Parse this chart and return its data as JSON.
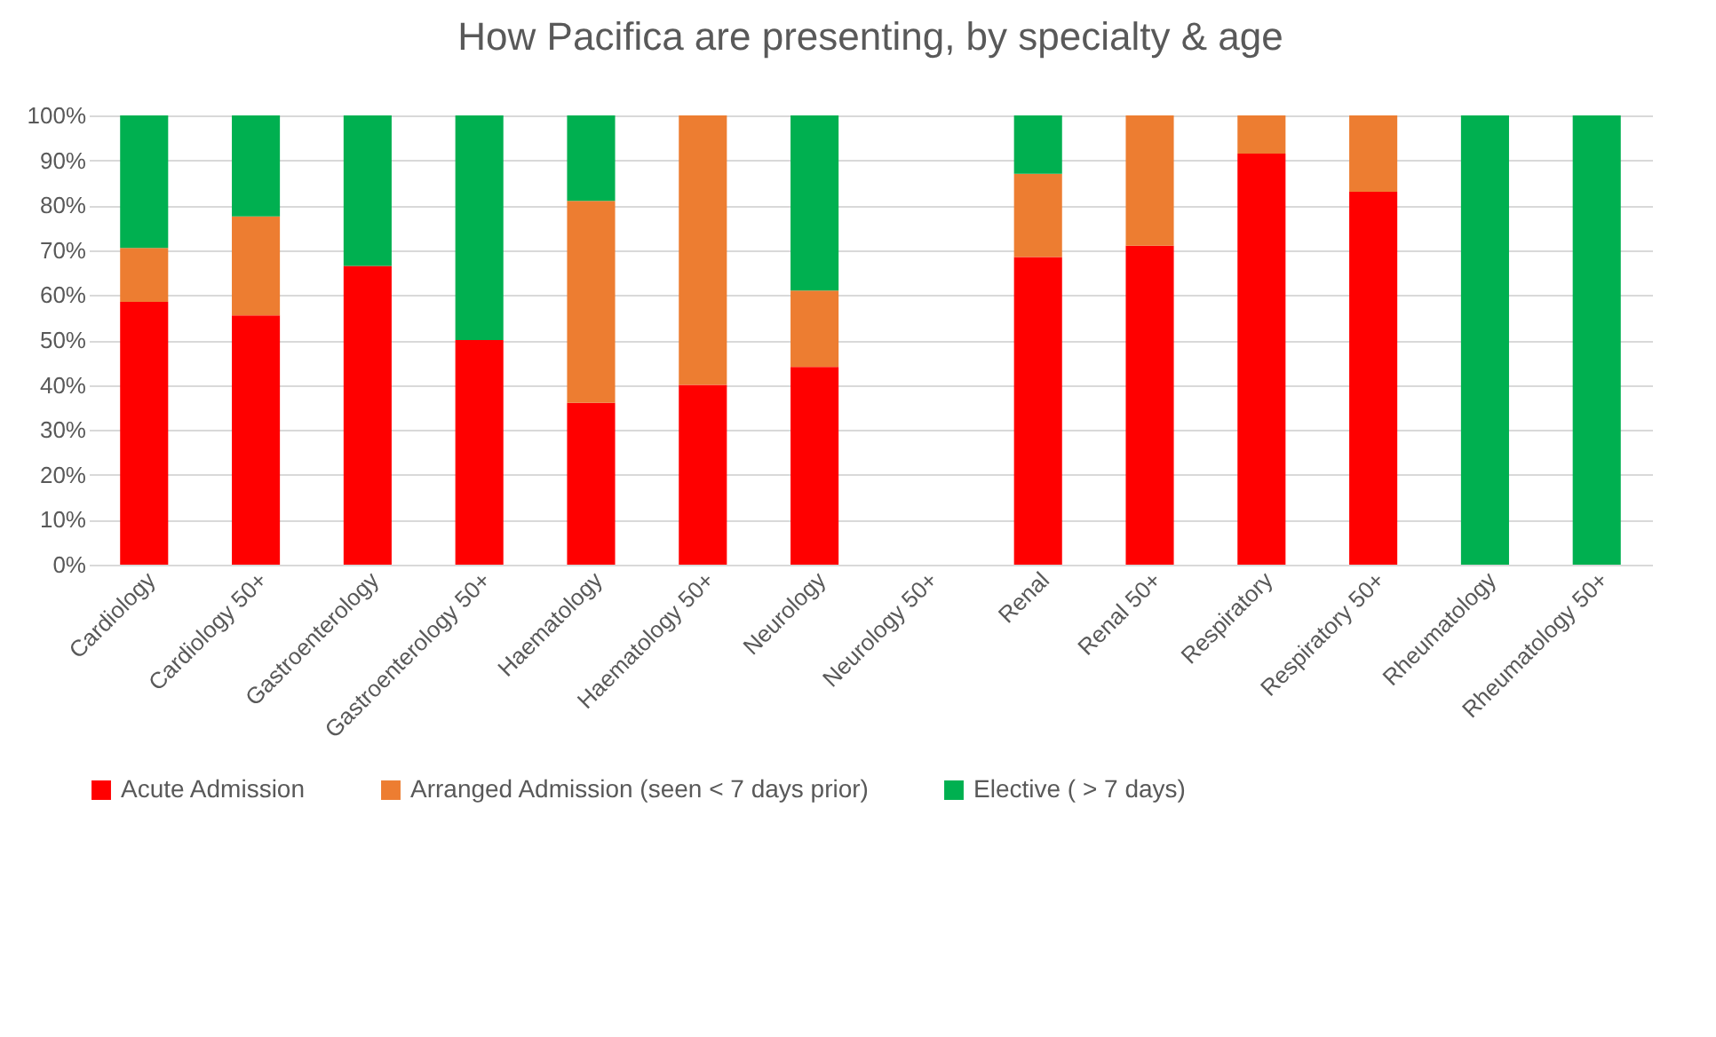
{
  "chart_data": {
    "type": "bar",
    "stacked": true,
    "title": "How Pacifica are presenting, by specialty & age",
    "categories": [
      "Cardiology",
      "Cardiology 50+",
      "Gastroenterology",
      "Gastroenterology 50+",
      "Haematology",
      "Haematology 50+",
      "Neurology",
      "Neurology 50+",
      "Renal",
      "Renal 50+",
      "Respiratory",
      "Respiratory 50+",
      "Rheumatology",
      "Rheumatology 50+"
    ],
    "series": [
      {
        "name": "Acute Admission",
        "color": "#ff0000",
        "values": [
          58.5,
          55.5,
          66.5,
          50,
          36,
          40,
          44,
          null,
          68.5,
          71,
          91.5,
          83,
          0,
          0
        ]
      },
      {
        "name": "Arranged Admission (seen < 7 days prior)",
        "color": "#ed7d31",
        "values": [
          12,
          22,
          0,
          0,
          45,
          60,
          17,
          null,
          18.5,
          29,
          8.5,
          17,
          0,
          0
        ]
      },
      {
        "name": "Elective ( > 7 days)",
        "color": "#00b050",
        "values": [
          29.5,
          22.5,
          33.5,
          50,
          19,
          0,
          39,
          null,
          13,
          0,
          0,
          0,
          100,
          100
        ]
      }
    ],
    "ylim": [
      0,
      100
    ],
    "yticks": [
      {
        "value": 0,
        "label": "0%"
      },
      {
        "value": 10,
        "label": "10%"
      },
      {
        "value": 20,
        "label": "20%"
      },
      {
        "value": 30,
        "label": "30%"
      },
      {
        "value": 40,
        "label": "40%"
      },
      {
        "value": 50,
        "label": "50%"
      },
      {
        "value": 60,
        "label": "60%"
      },
      {
        "value": 70,
        "label": "70%"
      },
      {
        "value": 80,
        "label": "80%"
      },
      {
        "value": 90,
        "label": "90%"
      },
      {
        "value": 100,
        "label": "100%"
      }
    ],
    "grid": "y",
    "legend": "bottom"
  }
}
